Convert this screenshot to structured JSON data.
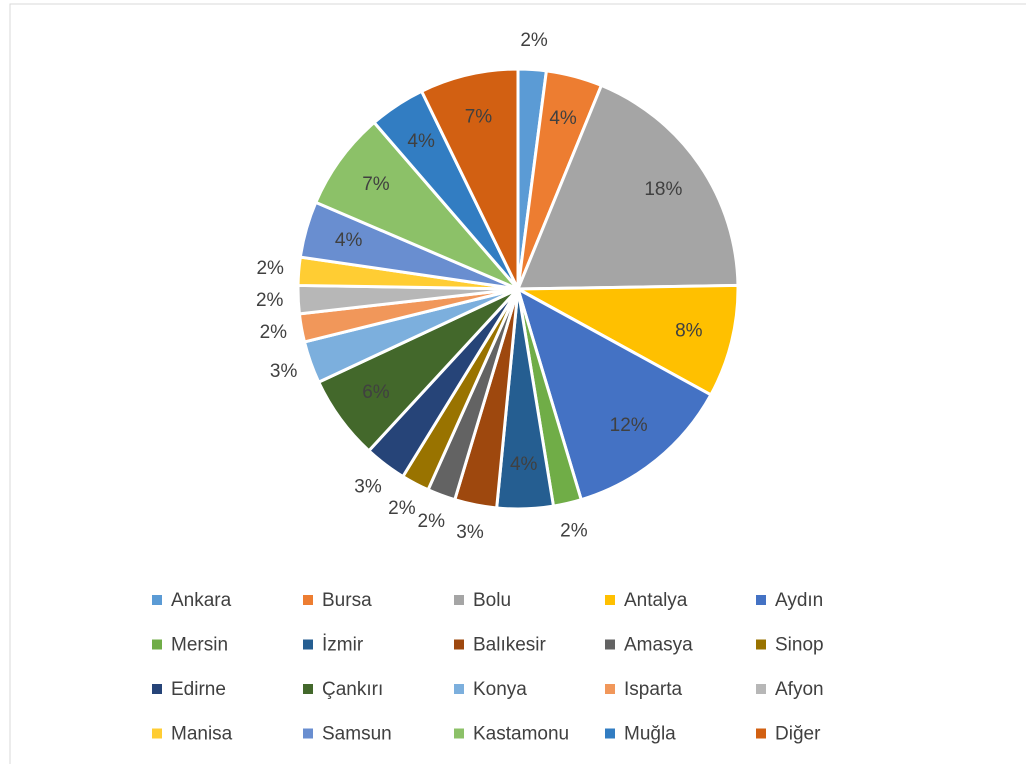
{
  "chart_data": {
    "type": "pie",
    "categories": [
      "Ankara",
      "Bursa",
      "Bolu",
      "Antalya",
      "Aydın",
      "Mersin",
      "İzmir",
      "Balıkesir",
      "Amasya",
      "Sinop",
      "Edirne",
      "Çankırı",
      "Konya",
      "Isparta",
      "Afyon",
      "Manisa",
      "Samsun",
      "Kastamonu",
      "Muğla",
      "Diğer"
    ],
    "values": [
      2,
      4,
      18,
      8,
      12,
      2,
      4,
      3,
      2,
      2,
      3,
      6,
      3,
      2,
      2,
      2,
      4,
      7,
      4,
      7
    ],
    "value_labels": [
      "2%",
      "4%",
      "18%",
      "8%",
      "12%",
      "2%",
      "4%",
      "3%",
      "2%",
      "2%",
      "3%",
      "6%",
      "3%",
      "2%",
      "2%",
      "2%",
      "4%",
      "7%",
      "4%",
      "7%"
    ],
    "colors": [
      "#5b9bd5",
      "#ed7d31",
      "#a5a5a5",
      "#ffc000",
      "#4472c4",
      "#70ad47",
      "#255e91",
      "#9e480e",
      "#636363",
      "#997300",
      "#264478",
      "#43682b",
      "#7cafdd",
      "#f1975a",
      "#b7b7b7",
      "#ffcd33",
      "#698ed0",
      "#8cc168",
      "#327dc2",
      "#d26012"
    ],
    "legend": "bottom"
  }
}
